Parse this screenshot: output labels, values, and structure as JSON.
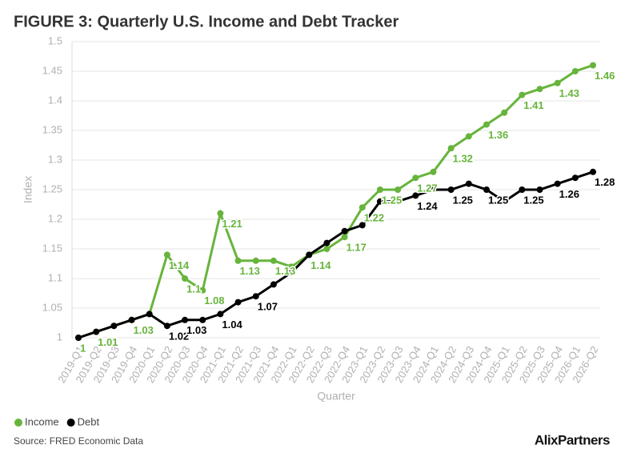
{
  "chart_data": {
    "type": "line",
    "title": "FIGURE 3: Quarterly U.S. Income and Debt Tracker",
    "y_label": "Index",
    "x_label": "Quarter",
    "source": "Source: FRED Economic Data",
    "logo": "AlixPartners",
    "categories": [
      "2019-Q1",
      "2019-Q2",
      "2019-Q3",
      "2019-Q4",
      "2020-Q1",
      "2020-Q2",
      "2020-Q3",
      "2020-Q4",
      "2021-Q1",
      "2021-Q2",
      "2021-Q3",
      "2021-Q4",
      "2022-Q1",
      "2022-Q2",
      "2022-Q3",
      "2022-Q4",
      "2023-Q1",
      "2023-Q2",
      "2023-Q3",
      "2023-Q4",
      "2024-Q1",
      "2024-Q2",
      "2024-Q3",
      "2024-Q4",
      "2025-Q1",
      "2025-Q2",
      "2025-Q3",
      "2025-Q4",
      "2026-Q1",
      "2026-Q2"
    ],
    "series": [
      {
        "name": "Income",
        "color": "#67b43c",
        "values": [
          1,
          1.01,
          1.02,
          1.03,
          1.04,
          1.14,
          1.1,
          1.08,
          1.21,
          1.13,
          1.13,
          1.13,
          1.12,
          1.14,
          1.15,
          1.17,
          1.22,
          1.25,
          1.25,
          1.27,
          1.28,
          1.32,
          1.34,
          1.36,
          1.38,
          1.41,
          1.42,
          1.43,
          1.45,
          1.46
        ],
        "value_labels": [
          "1",
          "1.01",
          null,
          "1.03",
          null,
          "1.14",
          "1.1",
          "1.08",
          "1.21",
          "1.13",
          null,
          "1.13",
          null,
          "1.14",
          null,
          "1.17",
          "1.22",
          "1.25",
          null,
          "1.27",
          null,
          "1.32",
          null,
          "1.36",
          null,
          "1.41",
          null,
          "1.43",
          null,
          "1.46"
        ]
      },
      {
        "name": "Debt",
        "color": "#000000",
        "values": [
          1,
          1.01,
          1.02,
          1.03,
          1.04,
          1.02,
          1.03,
          1.03,
          1.04,
          1.06,
          1.07,
          1.09,
          1.11,
          1.14,
          1.16,
          1.18,
          1.19,
          1.23,
          1.23,
          1.24,
          1.25,
          1.25,
          1.26,
          1.25,
          1.23,
          1.25,
          1.25,
          1.26,
          1.27,
          1.28
        ],
        "value_labels": [
          null,
          null,
          null,
          null,
          null,
          "1.02",
          "1.03",
          null,
          "1.04",
          null,
          "1.07",
          null,
          null,
          null,
          null,
          null,
          null,
          null,
          null,
          "1.24",
          null,
          "1.25",
          null,
          "1.25",
          null,
          "1.25",
          null,
          "1.26",
          null,
          "1.28"
        ]
      }
    ],
    "ylim": [
      1,
      1.5
    ],
    "yticks": [
      1,
      1.05,
      1.1,
      1.15,
      1.2,
      1.25,
      1.3,
      1.35,
      1.4,
      1.45,
      1.5
    ],
    "grid": true,
    "legend": "bottom-left"
  }
}
